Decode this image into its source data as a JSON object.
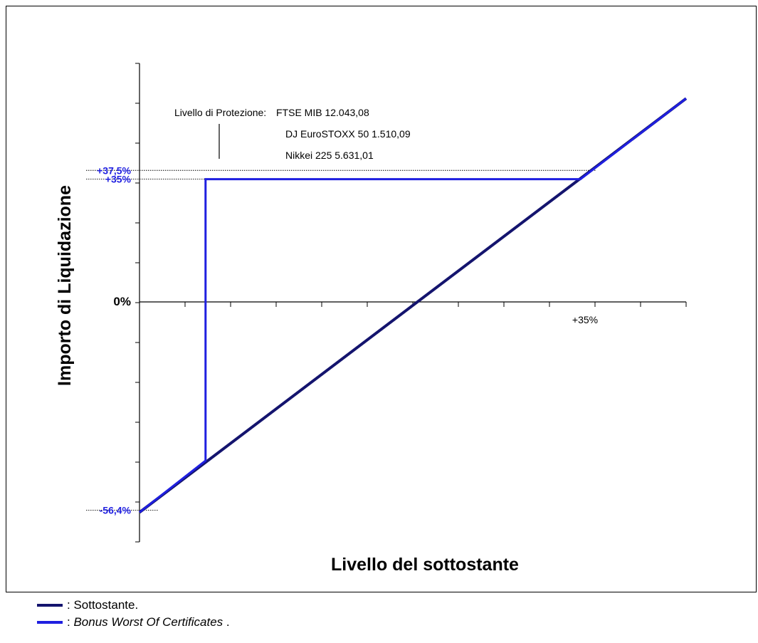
{
  "chart_data": {
    "type": "line",
    "xlabel": "Livello del sottostante",
    "ylabel": "Importo di Liquidazione",
    "x_tick_labels": [
      {
        "x": 35,
        "label": "+35%"
      }
    ],
    "y_tick_labels": [
      {
        "y": 37.5,
        "label": "+37,5%",
        "color": "#1f1fe0"
      },
      {
        "y": 35,
        "label": "+35%",
        "color": "#1f1fe0"
      },
      {
        "y": 0,
        "label": "0%",
        "color": "#000000"
      },
      {
        "y": -56.4,
        "label": "-56,4%",
        "color": "#1f1fe0"
      }
    ],
    "xlim": [
      -60,
      60
    ],
    "ylim": [
      -65,
      68
    ],
    "grid": false,
    "annotation": {
      "title": "Livello di Protezione:",
      "lines": [
        "FTSE MIB 12.043,08",
        "DJ EuroSTOXX 50 1.510,09",
        "Nikkei 225 5.631,01"
      ]
    },
    "series": [
      {
        "name": "Sottostante.",
        "color": "#14146e",
        "x": [
          -60,
          60
        ],
        "y": [
          -57,
          58
        ]
      },
      {
        "name": "Bonus Worst Of Certificates",
        "color": "#1f1fe0",
        "x": [
          -60,
          -45.5,
          -45.5,
          36.8,
          60
        ],
        "y": [
          -57,
          -43,
          35,
          35,
          58
        ]
      }
    ]
  },
  "legend": {
    "items": [
      {
        "label": ": Sottostante.",
        "color": "#14146e",
        "italic": false
      },
      {
        "label": ": ",
        "italic_label": "Bonus Worst Of Certificates",
        "suffix": " .",
        "color": "#1f1fe0",
        "italic": true
      }
    ]
  }
}
